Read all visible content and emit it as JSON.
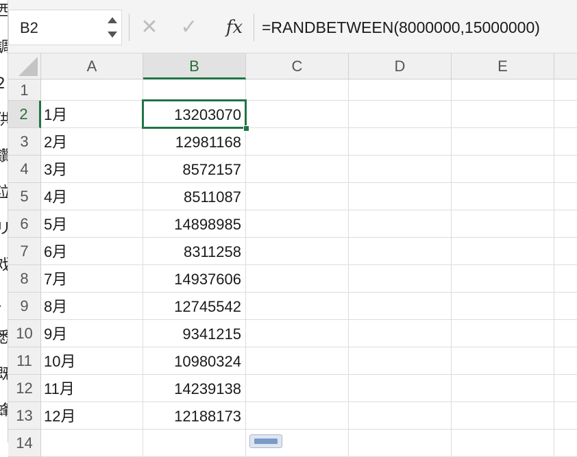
{
  "formula_bar": {
    "name_box": "B2",
    "cancel_icon": "✕",
    "enter_icon": "✓",
    "fx_label": "fx",
    "formula": "=RANDBETWEEN(8000000,15000000)"
  },
  "left_strip_glyphs": [
    "西",
    "調",
    "2",
    "供",
    "鑽",
    "泣",
    "リ",
    "戏",
    "、",
    "悉",
    "既",
    "蜂"
  ],
  "columns": [
    "A",
    "B",
    "C",
    "D",
    "E"
  ],
  "active_cell": {
    "column": "B",
    "row": "2"
  },
  "rows": [
    {
      "num": "1",
      "a": "",
      "b": ""
    },
    {
      "num": "2",
      "a": "1月",
      "b": "13203070"
    },
    {
      "num": "3",
      "a": "2月",
      "b": "12981168"
    },
    {
      "num": "4",
      "a": "3月",
      "b": "8572157"
    },
    {
      "num": "5",
      "a": "4月",
      "b": "8511087"
    },
    {
      "num": "6",
      "a": "5月",
      "b": "14898985"
    },
    {
      "num": "7",
      "a": "6月",
      "b": "8311258"
    },
    {
      "num": "8",
      "a": "7月",
      "b": "14937606"
    },
    {
      "num": "9",
      "a": "8月",
      "b": "12745542"
    },
    {
      "num": "10",
      "a": "9月",
      "b": "9341215"
    },
    {
      "num": "11",
      "a": "10月",
      "b": "10980324"
    },
    {
      "num": "12",
      "a": "11月",
      "b": "14239138"
    },
    {
      "num": "13",
      "a": "12月",
      "b": "12188173"
    },
    {
      "num": "14",
      "a": "",
      "b": ""
    }
  ]
}
